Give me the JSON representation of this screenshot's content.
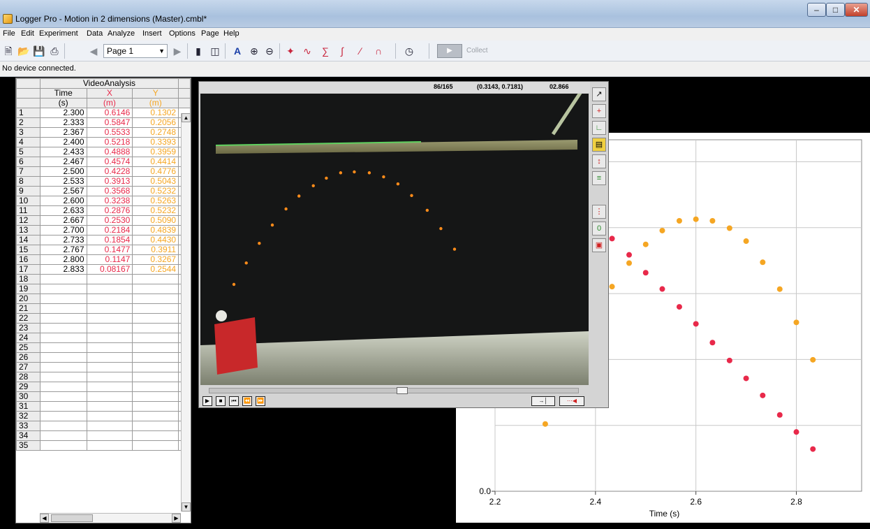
{
  "window": {
    "title": "Logger Pro - Motion in 2 dimensions (Master).cmbl*"
  },
  "menu": [
    "File",
    "Edit",
    "Experiment",
    "Data",
    "Analyze",
    "Insert",
    "Options",
    "Page",
    "Help"
  ],
  "toolbar": {
    "page_label": "Page 1",
    "collect_label": "Collect",
    "icons": [
      "new-file-icon",
      "open-folder-icon",
      "save-icon",
      "print-icon",
      "prev-page-icon",
      "next-page-icon",
      "data-browser-icon",
      "sensor-icon",
      "autoscale-icon",
      "zoom-in-icon",
      "zoom-out-icon",
      "examine-icon",
      "tangent-icon",
      "statistics-icon",
      "integral-icon",
      "linear-fit-icon",
      "curve-fit-icon",
      "timer-icon"
    ]
  },
  "status": {
    "text": "No device connected."
  },
  "table": {
    "dataset": "VideoAnalysis",
    "columns": [
      {
        "name": "Time",
        "unit": "(s)"
      },
      {
        "name": "X",
        "unit": "(m)"
      },
      {
        "name": "Y",
        "unit": "(m)"
      }
    ],
    "rows": [
      [
        "2.300",
        "0.6146",
        "0.1302"
      ],
      [
        "2.333",
        "0.5847",
        "0.2056"
      ],
      [
        "2.367",
        "0.5533",
        "0.2748"
      ],
      [
        "2.400",
        "0.5218",
        "0.3393"
      ],
      [
        "2.433",
        "0.4888",
        "0.3959"
      ],
      [
        "2.467",
        "0.4574",
        "0.4414"
      ],
      [
        "2.500",
        "0.4228",
        "0.4776"
      ],
      [
        "2.533",
        "0.3913",
        "0.5043"
      ],
      [
        "2.567",
        "0.3568",
        "0.5232"
      ],
      [
        "2.600",
        "0.3238",
        "0.5263"
      ],
      [
        "2.633",
        "0.2876",
        "0.5232"
      ],
      [
        "2.667",
        "0.2530",
        "0.5090"
      ],
      [
        "2.700",
        "0.2184",
        "0.4839"
      ],
      [
        "2.733",
        "0.1854",
        "0.4430"
      ],
      [
        "2.767",
        "0.1477",
        "0.3911"
      ],
      [
        "2.800",
        "0.1147",
        "0.3267"
      ],
      [
        "2.833",
        "0.08167",
        "0.2544"
      ]
    ],
    "row_numbers": [
      "1",
      "2",
      "3",
      "4",
      "5",
      "6",
      "7",
      "8",
      "9",
      "10",
      "11",
      "12",
      "13",
      "14",
      "15",
      "16",
      "17",
      "18",
      "19",
      "20",
      "21",
      "22",
      "23",
      "24",
      "25",
      "26",
      "27",
      "28",
      "29",
      "30",
      "31",
      "32",
      "33",
      "34",
      "35"
    ]
  },
  "video": {
    "frame": "86/165",
    "coords": "(0.3143, 0.7181)",
    "time": "02.866"
  },
  "colors": {
    "x_series": "#e8294a",
    "y_series": "#f5a623",
    "video_marker": "#ff8c1a"
  },
  "chart_data": {
    "type": "scatter",
    "xlabel": "Time (s)",
    "ylabel": "",
    "x_ticks": [
      "2.2",
      "2.4",
      "2.6",
      "2.8"
    ],
    "y_ticks": [
      "0.0"
    ],
    "xlim": [
      2.2,
      2.93
    ],
    "ylim": [
      0.0,
      0.68
    ],
    "grid": true,
    "x": [
      2.3,
      2.333,
      2.367,
      2.4,
      2.433,
      2.467,
      2.5,
      2.533,
      2.567,
      2.6,
      2.633,
      2.667,
      2.7,
      2.733,
      2.767,
      2.8,
      2.833
    ],
    "series": [
      {
        "values": [
          0.6146,
          0.5847,
          0.5533,
          0.5218,
          0.4888,
          0.4574,
          0.4228,
          0.3913,
          0.3568,
          0.3238,
          0.2876,
          0.253,
          0.2184,
          0.1854,
          0.1477,
          0.1147,
          0.08167
        ]
      },
      {
        "values": [
          0.1302,
          0.2056,
          0.2748,
          0.3393,
          0.3959,
          0.4414,
          0.4776,
          0.5043,
          0.5232,
          0.5263,
          0.5232,
          0.509,
          0.4839,
          0.443,
          0.3911,
          0.3267,
          0.2544
        ]
      }
    ]
  }
}
